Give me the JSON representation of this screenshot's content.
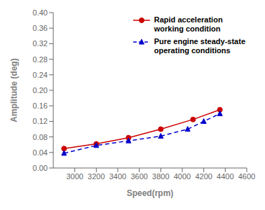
{
  "chart_data": {
    "type": "line",
    "xlabel": "Speed(rpm)",
    "ylabel": "Amplitude (deg)",
    "xlim": [
      2800,
      4600
    ],
    "ylim": [
      0,
      0.4
    ],
    "xticks": [
      3000,
      3200,
      3400,
      3600,
      3800,
      4000,
      4200,
      4400,
      4600
    ],
    "yticks": [
      {
        "value": 0,
        "label": "0.00"
      },
      0.04,
      0.08,
      0.12,
      0.16,
      {
        "value": 0.2,
        "label": "0.20"
      },
      0.24,
      0.28,
      0.32,
      0.36,
      {
        "value": 0.4,
        "label": "0.40"
      }
    ],
    "grid": false,
    "legend": "upper right",
    "series": [
      {
        "name": "Rapid acceleration\nworking condition",
        "color": "#cc0000",
        "marker": "circle",
        "line_style": "solid",
        "x": [
          2900,
          3200,
          3500,
          3800,
          4100,
          4350
        ],
        "values": [
          0.05,
          0.062,
          0.078,
          0.1,
          0.125,
          0.15
        ]
      },
      {
        "name": "Pure engine steady-state\noperating conditions",
        "color": "#0000cc",
        "marker": "triangle",
        "line_style": "dashed",
        "x": [
          2900,
          3200,
          3500,
          3800,
          4050,
          4200,
          4350
        ],
        "values": [
          0.038,
          0.058,
          0.07,
          0.082,
          0.1,
          0.12,
          0.14
        ]
      }
    ]
  }
}
